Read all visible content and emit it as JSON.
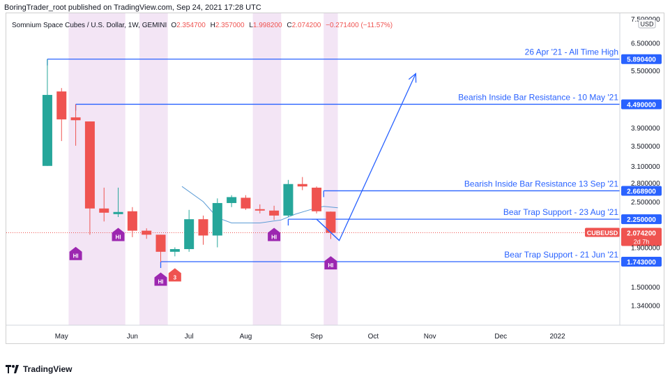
{
  "header": {
    "publisher": "BoringTrader_root published on TradingView.com, Sep 24, 2021 17:28 UTC"
  },
  "chart_data": {
    "type": "candlestick",
    "symbol_line": {
      "name": "Somnium Space Cubes / U.S. Dollar, 1W, GEMINI",
      "o_label": "O",
      "o_value": "2.354700",
      "h_label": "H",
      "h_value": "2.357000",
      "l_label": "L",
      "l_value": "1.998200",
      "c_label": "C",
      "c_value": "2.074200",
      "change": "−0.271400 (−11.57%)"
    },
    "currency_badge": "USD",
    "y_scale": "log",
    "ylim": [
      1.2,
      7.6
    ],
    "y_ticks": [
      {
        "value": 7.5,
        "label": "7.500000"
      },
      {
        "value": 6.5,
        "label": "6.500000"
      },
      {
        "value": 5.5,
        "label": "5.500000"
      },
      {
        "value": 3.9,
        "label": "3.900000"
      },
      {
        "value": 3.5,
        "label": "3.500000"
      },
      {
        "value": 3.1,
        "label": "3.100000"
      },
      {
        "value": 2.8,
        "label": "2.800000"
      },
      {
        "value": 2.5,
        "label": "2.500000"
      },
      {
        "value": 1.9,
        "label": "1.900000"
      },
      {
        "value": 1.5,
        "label": "1.500000"
      },
      {
        "value": 1.34,
        "label": "1.340000"
      }
    ],
    "x_ticks": [
      {
        "week": 1,
        "label": "May"
      },
      {
        "week": 6,
        "label": "Jun"
      },
      {
        "week": 10,
        "label": "Jul"
      },
      {
        "week": 14,
        "label": "Aug"
      },
      {
        "week": 19,
        "label": "Sep"
      },
      {
        "week": 23,
        "label": "Oct"
      },
      {
        "week": 27,
        "label": "Nov"
      },
      {
        "week": 32,
        "label": "Dec"
      },
      {
        "week": 36,
        "label": "2022"
      }
    ],
    "xlim": [
      -2.9,
      40.4
    ],
    "candles": [
      {
        "week": 0,
        "o": 3.1,
        "h": 5.89,
        "l": 3.1,
        "c": 4.75
      },
      {
        "week": 1,
        "o": 4.85,
        "h": 4.95,
        "l": 3.6,
        "c": 4.1
      },
      {
        "week": 2,
        "o": 4.15,
        "h": 4.49,
        "l": 3.5,
        "c": 4.08
      },
      {
        "week": 3,
        "o": 4.05,
        "h": 4.05,
        "l": 2.05,
        "c": 2.4
      },
      {
        "week": 4,
        "o": 2.4,
        "h": 2.72,
        "l": 2.22,
        "c": 2.34
      },
      {
        "week": 5,
        "o": 2.32,
        "h": 2.72,
        "l": 2.28,
        "c": 2.35
      },
      {
        "week": 6,
        "o": 2.36,
        "h": 2.42,
        "l": 2.02,
        "c": 2.1
      },
      {
        "week": 7,
        "o": 2.1,
        "h": 2.13,
        "l": 2.0,
        "c": 2.05
      },
      {
        "week": 8,
        "o": 2.05,
        "h": 2.05,
        "l": 1.74,
        "c": 1.85
      },
      {
        "week": 9,
        "o": 1.85,
        "h": 1.9,
        "l": 1.8,
        "c": 1.88
      },
      {
        "week": 10,
        "o": 1.88,
        "h": 2.38,
        "l": 1.85,
        "c": 2.25
      },
      {
        "week": 11,
        "o": 2.25,
        "h": 2.3,
        "l": 1.93,
        "c": 2.04
      },
      {
        "week": 12,
        "o": 2.04,
        "h": 2.55,
        "l": 1.9,
        "c": 2.48
      },
      {
        "week": 13,
        "o": 2.48,
        "h": 2.6,
        "l": 2.42,
        "c": 2.57
      },
      {
        "week": 14,
        "o": 2.56,
        "h": 2.6,
        "l": 2.38,
        "c": 2.4
      },
      {
        "week": 15,
        "o": 2.39,
        "h": 2.46,
        "l": 2.33,
        "c": 2.37
      },
      {
        "week": 16,
        "o": 2.37,
        "h": 2.44,
        "l": 2.24,
        "c": 2.3
      },
      {
        "week": 17,
        "o": 2.3,
        "h": 2.85,
        "l": 2.28,
        "c": 2.78
      },
      {
        "week": 18,
        "o": 2.78,
        "h": 2.9,
        "l": 2.68,
        "c": 2.74
      },
      {
        "week": 19,
        "o": 2.72,
        "h": 2.74,
        "l": 2.33,
        "c": 2.36
      },
      {
        "week": 20,
        "o": 2.3547,
        "h": 2.357,
        "l": 1.9982,
        "c": 2.0742
      }
    ],
    "ma_line": {
      "color": "#5b9bd5",
      "points": [
        {
          "week": 9.5,
          "value": 2.74
        },
        {
          "week": 11,
          "value": 2.5
        },
        {
          "week": 12,
          "value": 2.27
        },
        {
          "week": 13,
          "value": 2.2
        },
        {
          "week": 15,
          "value": 2.2
        },
        {
          "week": 16.5,
          "value": 2.24
        },
        {
          "week": 17.5,
          "value": 2.32
        },
        {
          "week": 18.5,
          "value": 2.38
        },
        {
          "week": 19.5,
          "value": 2.43
        },
        {
          "week": 20.5,
          "value": 2.41
        }
      ]
    },
    "shaded_zones": [
      {
        "from": 1.5,
        "to": 5.5
      },
      {
        "from": 6.5,
        "to": 8.5
      },
      {
        "from": 14.5,
        "to": 16.5
      },
      {
        "from": 19.5,
        "to": 20.5
      }
    ],
    "level_lines": [
      {
        "label": "26 Apr '21 - All Time High",
        "value": 5.8904,
        "value_label": "5.890400",
        "start_week": 0
      },
      {
        "label": "Bearish Inside Bar Resistance - 10 May '21",
        "value": 4.49,
        "value_label": "4.490000",
        "start_week": 2
      },
      {
        "label": "Bearish Inside Bar Resistance  13 Sep '21",
        "value": 2.6689,
        "value_label": "2.668900",
        "start_week": 19.5
      },
      {
        "label": "Bear Trap Support - 23 Aug '21",
        "value": 2.25,
        "value_label": "2.250000",
        "start_week": 17
      },
      {
        "label": "Bear Trap Support - 21 Jun '21",
        "value": 1.743,
        "value_label": "1.743000",
        "start_week": 8
      }
    ],
    "projection_path": [
      {
        "week": 19,
        "value": 2.25
      },
      {
        "week": 20.6,
        "value": 1.98
      },
      {
        "week": 26,
        "value": 5.4
      }
    ],
    "current_price": {
      "value": 2.0742,
      "label": "2.074200",
      "symbol": "CUBEUSD",
      "countdown": "2d 7h"
    },
    "markers": [
      {
        "week": 2,
        "value": 1.82,
        "label": "HI",
        "kind": "hi"
      },
      {
        "week": 5,
        "value": 2.04,
        "label": "HI",
        "kind": "hi"
      },
      {
        "week": 8,
        "value": 1.56,
        "label": "HI",
        "kind": "hi"
      },
      {
        "week": 9,
        "value": 1.6,
        "label": "3",
        "kind": "count"
      },
      {
        "week": 16,
        "value": 2.04,
        "label": "HI",
        "kind": "hi"
      },
      {
        "week": 20,
        "value": 1.72,
        "label": "HI",
        "kind": "hi"
      }
    ],
    "colors": {
      "up": "#26a69a",
      "down": "#ef5350",
      "level": "#2962ff",
      "level_text": "#2962ff",
      "shade": "#f3e5f5",
      "marker_hi": "#9c27b0",
      "marker_count": "#ef5350",
      "price_dotted": "#ef5350"
    }
  },
  "footer": {
    "brand": "TradingView"
  }
}
